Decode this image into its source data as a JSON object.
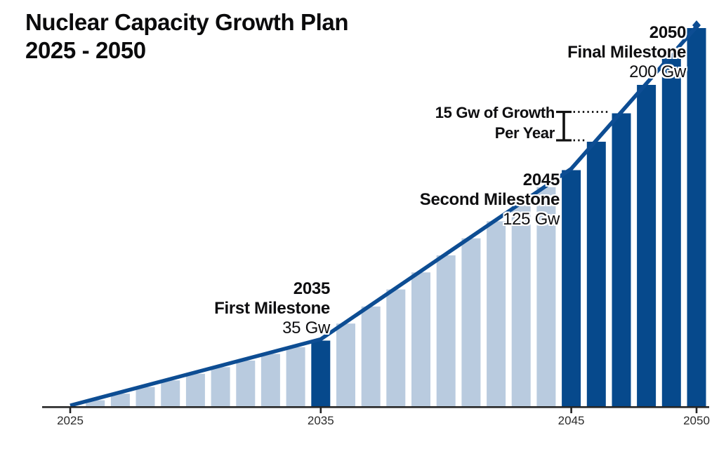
{
  "title": {
    "line1": "Nuclear Capacity Growth Plan",
    "line2": "2025 - 2050"
  },
  "annotations": {
    "first_milestone": {
      "year": "2035",
      "label": "First Milestone",
      "value": "35 Gw"
    },
    "second_milestone": {
      "year": "2045",
      "label": "Second Milestone",
      "value": "125 Gw"
    },
    "final_milestone": {
      "year": "2050",
      "label": "Final Milestone",
      "value": "200 Gw"
    },
    "growth": {
      "line1": "15 Gw of Growth",
      "line2": "Per Year"
    }
  },
  "colors": {
    "dark_blue": "#06498c",
    "light_blue": "#b9cbdf",
    "line_blue": "#0d4d93",
    "axis": "#242424",
    "bracket": "#111111",
    "text": "#0e0e10"
  },
  "x_ticks": [
    "2025",
    "2035",
    "2045",
    "2050"
  ],
  "chart_data": {
    "type": "bar",
    "title": "Nuclear Capacity Growth Plan 2025 - 2050",
    "unit": "Gw",
    "x": [
      2025,
      2026,
      2027,
      2028,
      2029,
      2030,
      2031,
      2032,
      2033,
      2034,
      2035,
      2036,
      2037,
      2038,
      2039,
      2040,
      2041,
      2042,
      2043,
      2044,
      2045,
      2046,
      2047,
      2048,
      2049,
      2050
    ],
    "values": [
      0,
      3.5,
      7,
      10.5,
      14,
      17.5,
      21,
      24.5,
      28,
      31.5,
      35,
      44,
      53,
      62,
      71,
      80,
      89,
      98,
      107,
      116,
      125,
      140,
      155,
      170,
      185,
      200
    ],
    "highlight_years": [
      2035,
      2045,
      2046,
      2047,
      2048,
      2049,
      2050
    ],
    "trend_points": [
      [
        2025,
        0
      ],
      [
        2035,
        35
      ],
      [
        2045,
        125
      ],
      [
        2050,
        200
      ]
    ],
    "milestones": [
      {
        "year": 2035,
        "value": 35,
        "label": "First Milestone"
      },
      {
        "year": 2045,
        "value": 125,
        "label": "Second Milestone"
      },
      {
        "year": 2050,
        "value": 200,
        "label": "Final Milestone"
      }
    ],
    "growth_bracket": {
      "between_years": [
        2046,
        2047
      ],
      "gw_per_year": 15,
      "text": "15 Gw of Growth Per Year"
    },
    "x_tick_labels": [
      "2025",
      "2035",
      "2045",
      "2050"
    ],
    "ylim": [
      0,
      200
    ],
    "grid": false,
    "legend": false
  }
}
